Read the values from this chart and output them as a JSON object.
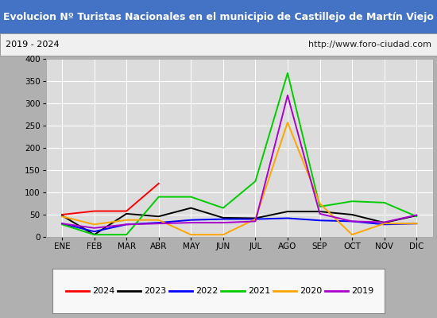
{
  "title": "Evolucion Nº Turistas Nacionales en el municipio de Castillejo de Martín Viejo",
  "subtitle_left": "2019 - 2024",
  "subtitle_right": "http://www.foro-ciudad.com",
  "title_bg_color": "#4472c4",
  "title_text_color": "#ffffff",
  "subtitle_bg_color": "#f0f0f0",
  "plot_bg_color": "#dcdcdc",
  "fig_bg_color": "#b0b0b0",
  "legend_bg_color": "#f8f8f8",
  "months": [
    "ENE",
    "FEB",
    "MAR",
    "ABR",
    "MAY",
    "JUN",
    "JUL",
    "AGO",
    "SEP",
    "OCT",
    "NOV",
    "DIC"
  ],
  "ylim": [
    0,
    400
  ],
  "yticks": [
    0,
    50,
    100,
    150,
    200,
    250,
    300,
    350,
    400
  ],
  "series": {
    "2024": {
      "color": "#ff0000",
      "values": [
        50,
        58,
        58,
        120,
        null,
        null,
        null,
        null,
        null,
        null,
        null,
        null
      ]
    },
    "2023": {
      "color": "#000000",
      "values": [
        48,
        5,
        52,
        46,
        65,
        43,
        42,
        57,
        57,
        50,
        32,
        48
      ]
    },
    "2022": {
      "color": "#0000ff",
      "values": [
        30,
        12,
        28,
        32,
        38,
        40,
        40,
        42,
        37,
        35,
        28,
        30
      ]
    },
    "2021": {
      "color": "#00cc00",
      "values": [
        28,
        5,
        5,
        90,
        90,
        65,
        125,
        368,
        68,
        80,
        77,
        46
      ]
    },
    "2020": {
      "color": "#ffa500",
      "values": [
        46,
        28,
        38,
        38,
        5,
        5,
        40,
        257,
        75,
        5,
        30,
        30
      ]
    },
    "2019": {
      "color": "#aa00cc",
      "values": [
        30,
        20,
        28,
        30,
        32,
        32,
        35,
        318,
        52,
        35,
        33,
        49
      ]
    }
  },
  "legend_order": [
    "2024",
    "2023",
    "2022",
    "2021",
    "2020",
    "2019"
  ],
  "title_fontsize": 9.0,
  "subtitle_fontsize": 8.0,
  "tick_fontsize": 7.5,
  "legend_fontsize": 8.0,
  "grid_color": "#ffffff",
  "spine_color": "#aaaaaa"
}
